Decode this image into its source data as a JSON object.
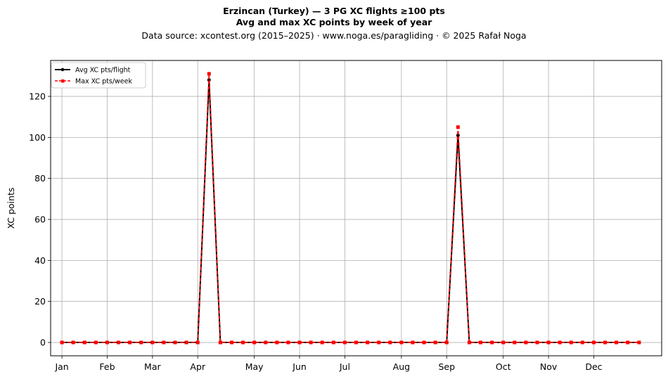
{
  "header": {
    "title_line1": "Erzincan (Turkey)  —  3 PG XC flights ≥100 pts",
    "title_line2": "Avg and max XC points by week of year",
    "subtitle": "Data source: xcontest.org (2015–2025)  ·  www.noga.es/paragliding  ·  © 2025 Rafał Noga"
  },
  "chart_data": {
    "type": "line",
    "ylabel": "XC points",
    "xlabel": "",
    "xlim": [
      0,
      54
    ],
    "ylim": [
      -6.5,
      137.5
    ],
    "grid": true,
    "legend_position": "top-left",
    "x_ticks": [
      {
        "label": "Jan",
        "week": 1
      },
      {
        "label": "Feb",
        "week": 5
      },
      {
        "label": "Mar",
        "week": 9
      },
      {
        "label": "Apr",
        "week": 13
      },
      {
        "label": "May",
        "week": 18
      },
      {
        "label": "Jun",
        "week": 22
      },
      {
        "label": "Jul",
        "week": 26
      },
      {
        "label": "Aug",
        "week": 31
      },
      {
        "label": "Sep",
        "week": 35
      },
      {
        "label": "Oct",
        "week": 40
      },
      {
        "label": "Nov",
        "week": 44
      },
      {
        "label": "Dec",
        "week": 48
      }
    ],
    "y_ticks": [
      0,
      20,
      40,
      60,
      80,
      100,
      120
    ],
    "weeks": [
      1,
      2,
      3,
      4,
      5,
      6,
      7,
      8,
      9,
      10,
      11,
      12,
      13,
      14,
      15,
      16,
      17,
      18,
      19,
      20,
      21,
      22,
      23,
      24,
      25,
      26,
      27,
      28,
      29,
      30,
      31,
      32,
      33,
      34,
      35,
      36,
      37,
      38,
      39,
      40,
      41,
      42,
      43,
      44,
      45,
      46,
      47,
      48,
      49,
      50,
      51,
      52
    ],
    "series": [
      {
        "name": "Avg XC pts/flight",
        "color": "#000000",
        "values": [
          0,
          0,
          0,
          0,
          0,
          0,
          0,
          0,
          0,
          0,
          0,
          0,
          0,
          128,
          0,
          0,
          0,
          0,
          0,
          0,
          0,
          0,
          0,
          0,
          0,
          0,
          0,
          0,
          0,
          0,
          0,
          0,
          0,
          0,
          0,
          101,
          0,
          0,
          0,
          0,
          0,
          0,
          0,
          0,
          0,
          0,
          0,
          0,
          0,
          0,
          0,
          0
        ]
      },
      {
        "name": "Max XC pts/week",
        "color": "#ff0000",
        "values": [
          0,
          0,
          0,
          0,
          0,
          0,
          0,
          0,
          0,
          0,
          0,
          0,
          0,
          131,
          0,
          0,
          0,
          0,
          0,
          0,
          0,
          0,
          0,
          0,
          0,
          0,
          0,
          0,
          0,
          0,
          0,
          0,
          0,
          0,
          0,
          105,
          0,
          0,
          0,
          0,
          0,
          0,
          0,
          0,
          0,
          0,
          0,
          0,
          0,
          0,
          0,
          0
        ]
      }
    ]
  }
}
